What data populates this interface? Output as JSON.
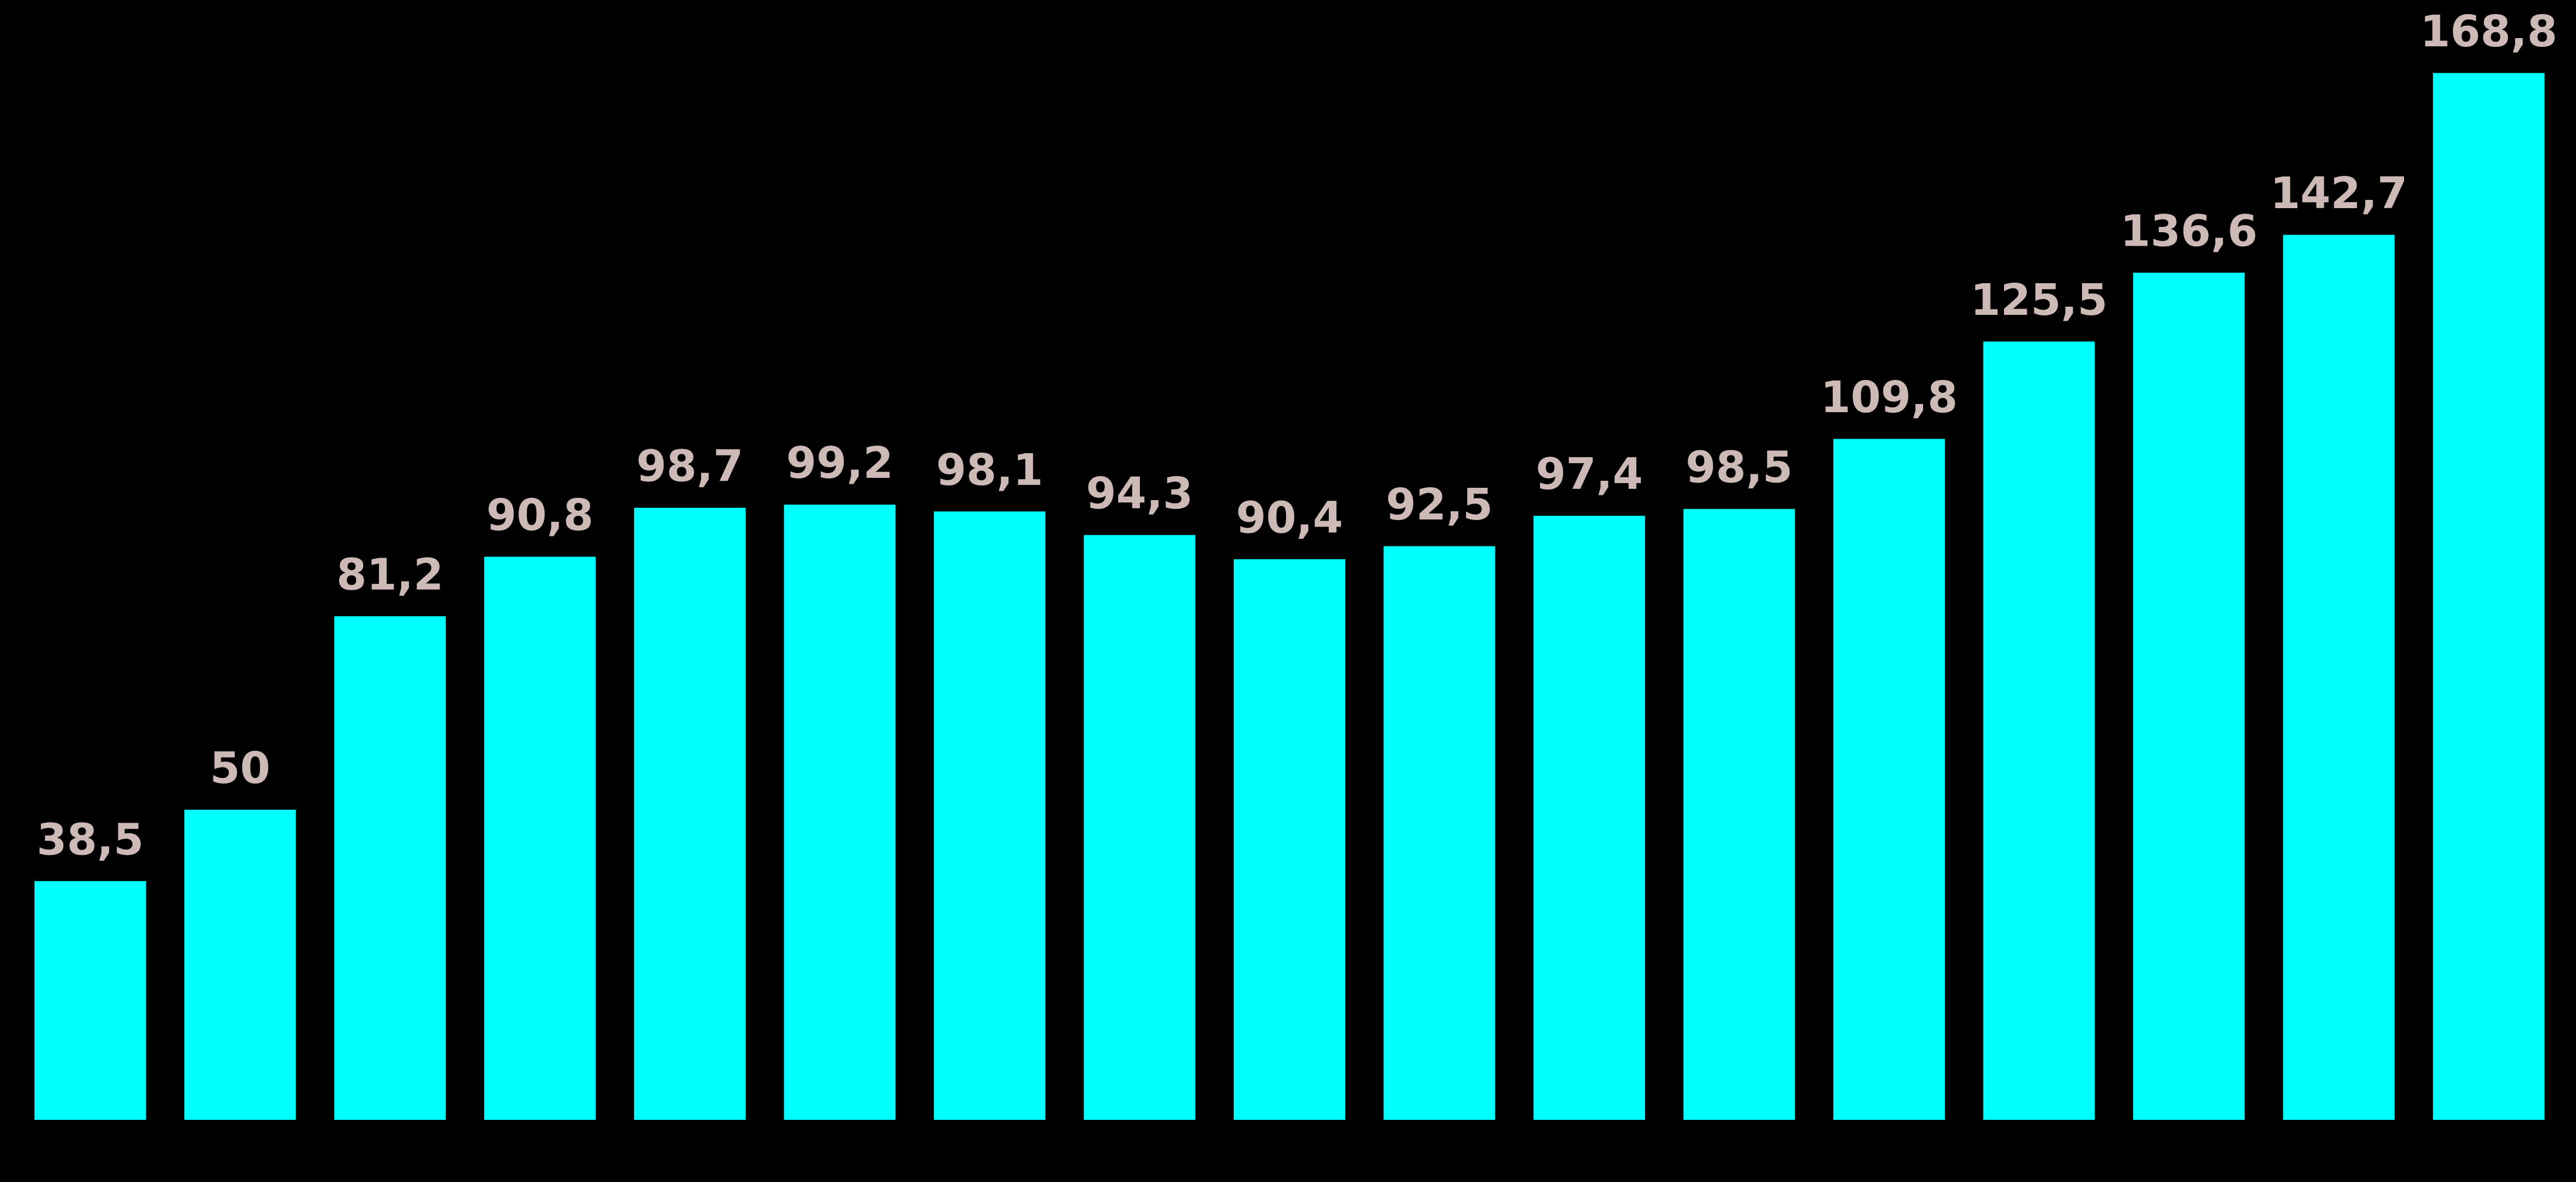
{
  "chart_data": {
    "type": "bar",
    "categories": [
      null,
      null,
      null,
      null,
      null,
      null,
      null,
      null,
      null,
      null,
      null,
      null,
      null,
      null,
      null,
      null,
      null
    ],
    "values": [
      38.5,
      50,
      81.2,
      90.8,
      98.7,
      99.2,
      98.1,
      94.3,
      90.4,
      92.5,
      97.4,
      98.5,
      109.8,
      125.5,
      136.6,
      142.7,
      168.8
    ],
    "value_labels": [
      "38,5",
      "50",
      "81,2",
      "90,8",
      "98,7",
      "99,2",
      "98,1",
      "94,3",
      "90,4",
      "92,5",
      "97,4",
      "98,5",
      "109,8",
      "125,5",
      "136,6",
      "142,7",
      "168,8"
    ],
    "color": "#00ffff",
    "ylim": [
      0,
      180
    ]
  }
}
